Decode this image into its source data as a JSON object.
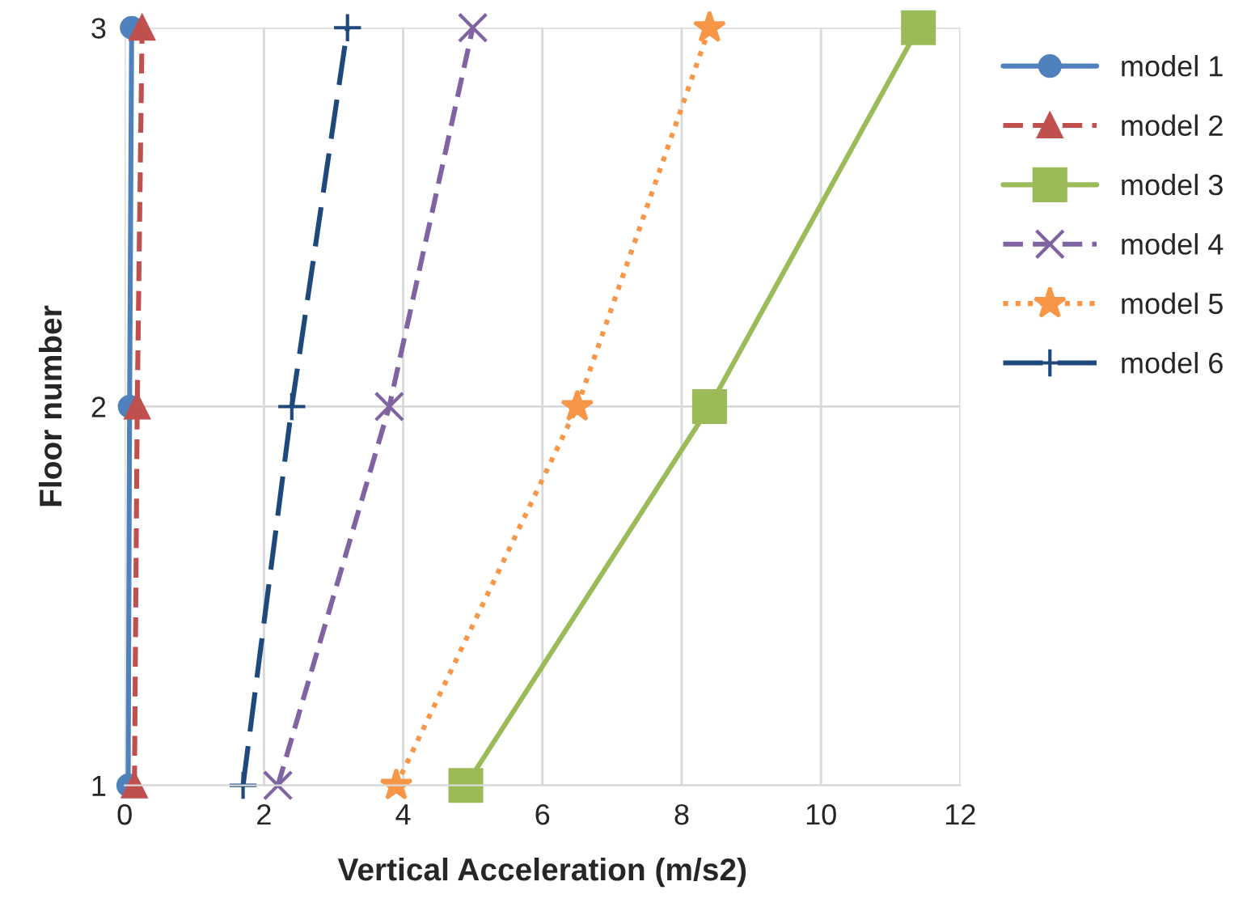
{
  "chart_data": {
    "type": "line",
    "xlabel": "Vertical Acceleration (m/s2)",
    "ylabel": "Floor number",
    "xlim": [
      0,
      12
    ],
    "xticks": [
      0,
      2,
      4,
      6,
      8,
      10,
      12
    ],
    "ylim": [
      1,
      3
    ],
    "yticks": [
      1,
      2,
      3
    ],
    "grid": true,
    "legend": "right",
    "series": [
      {
        "name": "model 1",
        "color": "#4f81bd",
        "marker": "circle",
        "line_style": "solid",
        "x": [
          0.05,
          0.07,
          0.1
        ],
        "values": [
          1,
          2,
          3
        ]
      },
      {
        "name": "model 2",
        "color": "#c0504d",
        "marker": "triangle",
        "line_style": "dashed",
        "x": [
          0.14,
          0.18,
          0.25
        ],
        "values": [
          1,
          2,
          3
        ]
      },
      {
        "name": "model 3",
        "color": "#9bbb59",
        "marker": "square",
        "line_style": "solid",
        "x": [
          4.9,
          8.4,
          11.4
        ],
        "values": [
          1,
          2,
          3
        ]
      },
      {
        "name": "model 4",
        "color": "#8064a2",
        "marker": "cross",
        "line_style": "dashed",
        "x": [
          2.2,
          3.8,
          5.0
        ],
        "values": [
          1,
          2,
          3
        ]
      },
      {
        "name": "model 5",
        "color": "#f79646",
        "marker": "star",
        "line_style": "dotted",
        "x": [
          3.9,
          6.5,
          8.4
        ],
        "values": [
          1,
          2,
          3
        ]
      },
      {
        "name": "model 6",
        "color": "#1f497d",
        "marker": "plus",
        "line_style": "longdash",
        "x": [
          1.7,
          2.4,
          3.2
        ],
        "values": [
          1,
          2,
          3
        ]
      }
    ]
  }
}
